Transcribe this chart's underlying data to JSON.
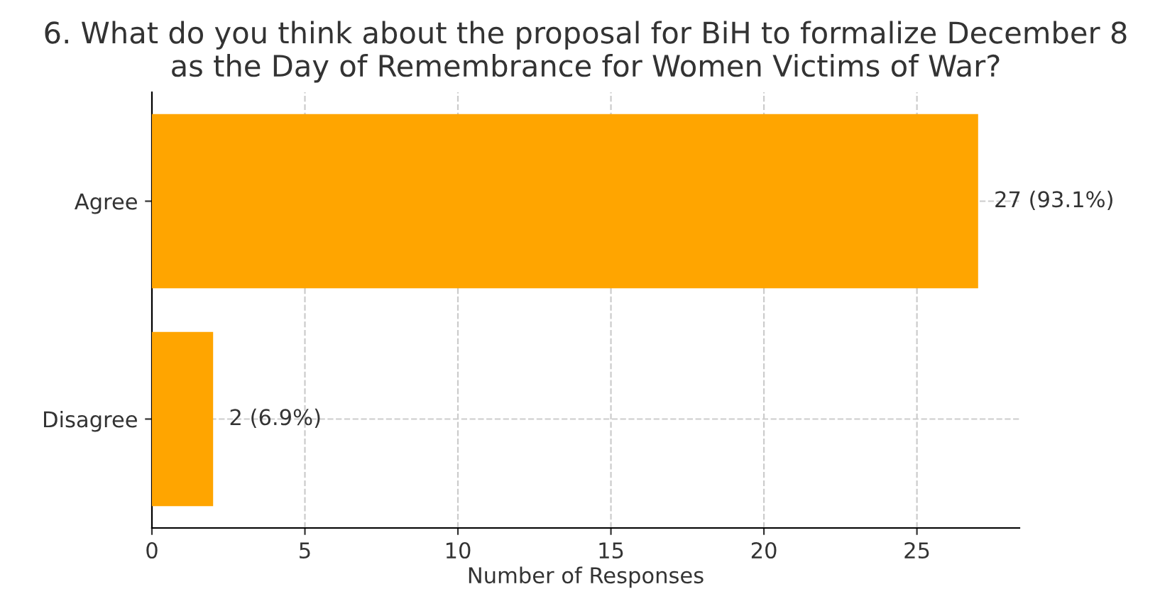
{
  "chart_data": {
    "type": "bar",
    "orientation": "horizontal",
    "title": "6. What do you think about the proposal for BiH to formalize December 8\nas the Day of Remembrance for Women Victims of War?",
    "xlabel": "Number of Responses",
    "categories": [
      "Agree",
      "Disagree"
    ],
    "values": [
      27,
      2
    ],
    "value_labels": [
      "27 (93.1%)",
      "2 (6.9%)"
    ],
    "color": "#ffa500",
    "xlim": [
      0,
      28.35
    ],
    "xticks": [
      0,
      5,
      10,
      15,
      20,
      25
    ],
    "grid": true
  }
}
